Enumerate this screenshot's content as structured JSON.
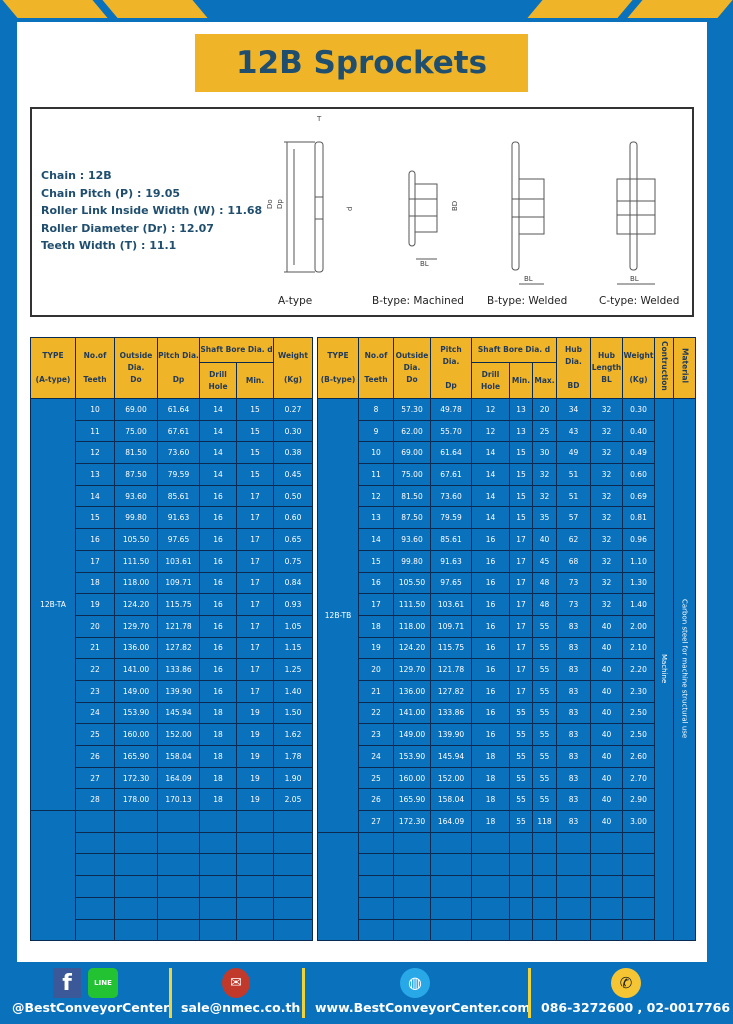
{
  "title": "12B Sprockets",
  "specs": [
    "Chain  :  12B",
    "Chain Pitch (P)  :  19.05",
    "Roller Link Inside Width (W) : 11.68",
    "Roller Diameter (Dr)  : 12.07",
    "Teeth Width (T)  :  11.1"
  ],
  "diagram_labels": {
    "a": "A-type",
    "bm": "B-type: Machined",
    "bw": "B-type: Welded",
    "cw": "C-type: Welded",
    "T": "T",
    "Do": "Do",
    "Dp": "Dp",
    "d": "d",
    "BD": "BD",
    "BL": "BL"
  },
  "table_a": {
    "headers": {
      "type": "TYPE",
      "type_sub": "(A-type)",
      "teeth": "No.of",
      "teeth_sub": "Teeth",
      "do": "Outside",
      "do_sub": "Dia.",
      "do_sub2": "Do",
      "dp": "Pitch Dia.",
      "dp_sub": "Dp",
      "bore": "Shaft Bore Dia. d",
      "drill": "Drill Hole",
      "min": "Min.",
      "weight": "Weight",
      "weight_sub": "(Kg)"
    },
    "type": "12B-TA",
    "rows": [
      [
        "10",
        "69.00",
        "61.64",
        "14",
        "15",
        "0.27"
      ],
      [
        "11",
        "75.00",
        "67.61",
        "14",
        "15",
        "0.30"
      ],
      [
        "12",
        "81.50",
        "73.60",
        "14",
        "15",
        "0.38"
      ],
      [
        "13",
        "87.50",
        "79.59",
        "14",
        "15",
        "0.45"
      ],
      [
        "14",
        "93.60",
        "85.61",
        "16",
        "17",
        "0.50"
      ],
      [
        "15",
        "99.80",
        "91.63",
        "16",
        "17",
        "0.60"
      ],
      [
        "16",
        "105.50",
        "97.65",
        "16",
        "17",
        "0.65"
      ],
      [
        "17",
        "111.50",
        "103.61",
        "16",
        "17",
        "0.75"
      ],
      [
        "18",
        "118.00",
        "109.71",
        "16",
        "17",
        "0.84"
      ],
      [
        "19",
        "124.20",
        "115.75",
        "16",
        "17",
        "0.93"
      ],
      [
        "20",
        "129.70",
        "121.78",
        "16",
        "17",
        "1.05"
      ],
      [
        "21",
        "136.00",
        "127.82",
        "16",
        "17",
        "1.15"
      ],
      [
        "22",
        "141.00",
        "133.86",
        "16",
        "17",
        "1.25"
      ],
      [
        "23",
        "149.00",
        "139.90",
        "16",
        "17",
        "1.40"
      ],
      [
        "24",
        "153.90",
        "145.94",
        "18",
        "19",
        "1.50"
      ],
      [
        "25",
        "160.00",
        "152.00",
        "18",
        "19",
        "1.62"
      ],
      [
        "26",
        "165.90",
        "158.04",
        "18",
        "19",
        "1.78"
      ],
      [
        "27",
        "172.30",
        "164.09",
        "18",
        "19",
        "1.90"
      ],
      [
        "28",
        "178.00",
        "170.13",
        "18",
        "19",
        "2.05"
      ]
    ]
  },
  "table_b": {
    "headers": {
      "type": "TYPE",
      "type_sub": "(B-type)",
      "teeth": "No.of",
      "teeth_sub": "Teeth",
      "do": "Outside",
      "do_sub": "Dia.",
      "do_sub2": "Do",
      "dp": "Pitch Dia.",
      "dp_sub": "Dp",
      "bore": "Shaft Bore Dia. d",
      "drill": "Drill Hole",
      "min": "Min.",
      "max": "Max.",
      "hub": "Hub Dia.",
      "hub_sub": "BD",
      "hublen": "Hub",
      "hublen_sub": "Length",
      "hublen_sub2": "BL",
      "weight": "Weight",
      "weight_sub": "(Kg)",
      "construction": "Contruction",
      "material": "Material"
    },
    "type": "12B-TB",
    "construction": "Machine",
    "material": "Carbon steel for machine structural use",
    "rows": [
      [
        "8",
        "57.30",
        "49.78",
        "12",
        "13",
        "20",
        "34",
        "32",
        "0.30"
      ],
      [
        "9",
        "62.00",
        "55.70",
        "12",
        "13",
        "25",
        "43",
        "32",
        "0.40"
      ],
      [
        "10",
        "69.00",
        "61.64",
        "14",
        "15",
        "30",
        "49",
        "32",
        "0.49"
      ],
      [
        "11",
        "75.00",
        "67.61",
        "14",
        "15",
        "32",
        "51",
        "32",
        "0.60"
      ],
      [
        "12",
        "81.50",
        "73.60",
        "14",
        "15",
        "32",
        "51",
        "32",
        "0.69"
      ],
      [
        "13",
        "87.50",
        "79.59",
        "14",
        "15",
        "35",
        "57",
        "32",
        "0.81"
      ],
      [
        "14",
        "93.60",
        "85.61",
        "16",
        "17",
        "40",
        "62",
        "32",
        "0.96"
      ],
      [
        "15",
        "99.80",
        "91.63",
        "16",
        "17",
        "45",
        "68",
        "32",
        "1.10"
      ],
      [
        "16",
        "105.50",
        "97.65",
        "16",
        "17",
        "48",
        "73",
        "32",
        "1.30"
      ],
      [
        "17",
        "111.50",
        "103.61",
        "16",
        "17",
        "48",
        "73",
        "32",
        "1.40"
      ],
      [
        "18",
        "118.00",
        "109.71",
        "16",
        "17",
        "55",
        "83",
        "40",
        "2.00"
      ],
      [
        "19",
        "124.20",
        "115.75",
        "16",
        "17",
        "55",
        "83",
        "40",
        "2.10"
      ],
      [
        "20",
        "129.70",
        "121.78",
        "16",
        "17",
        "55",
        "83",
        "40",
        "2.20"
      ],
      [
        "21",
        "136.00",
        "127.82",
        "16",
        "17",
        "55",
        "83",
        "40",
        "2.30"
      ],
      [
        "22",
        "141.00",
        "133.86",
        "16",
        "55",
        "55",
        "83",
        "40",
        "2.50"
      ],
      [
        "23",
        "149.00",
        "139.90",
        "16",
        "55",
        "55",
        "83",
        "40",
        "2.50"
      ],
      [
        "24",
        "153.90",
        "145.94",
        "18",
        "55",
        "55",
        "83",
        "40",
        "2.60"
      ],
      [
        "25",
        "160.00",
        "152.00",
        "18",
        "55",
        "55",
        "83",
        "40",
        "2.70"
      ],
      [
        "26",
        "165.90",
        "158.04",
        "18",
        "55",
        "55",
        "83",
        "40",
        "2.90"
      ],
      [
        "27",
        "172.30",
        "164.09",
        "18",
        "55",
        "118",
        "83",
        "40",
        "3.00"
      ]
    ]
  },
  "footer": {
    "social": "@BestConveyorCenter",
    "line_badge": "LINE",
    "email": "sale@nmec.co.th",
    "website": "www.BestConveyorCenter.com",
    "phone": "086-3272600 , 02-0017766"
  },
  "colors": {
    "blue": "#0a72bd",
    "yellow": "#f0b429",
    "navy": "#1f4e6e"
  }
}
